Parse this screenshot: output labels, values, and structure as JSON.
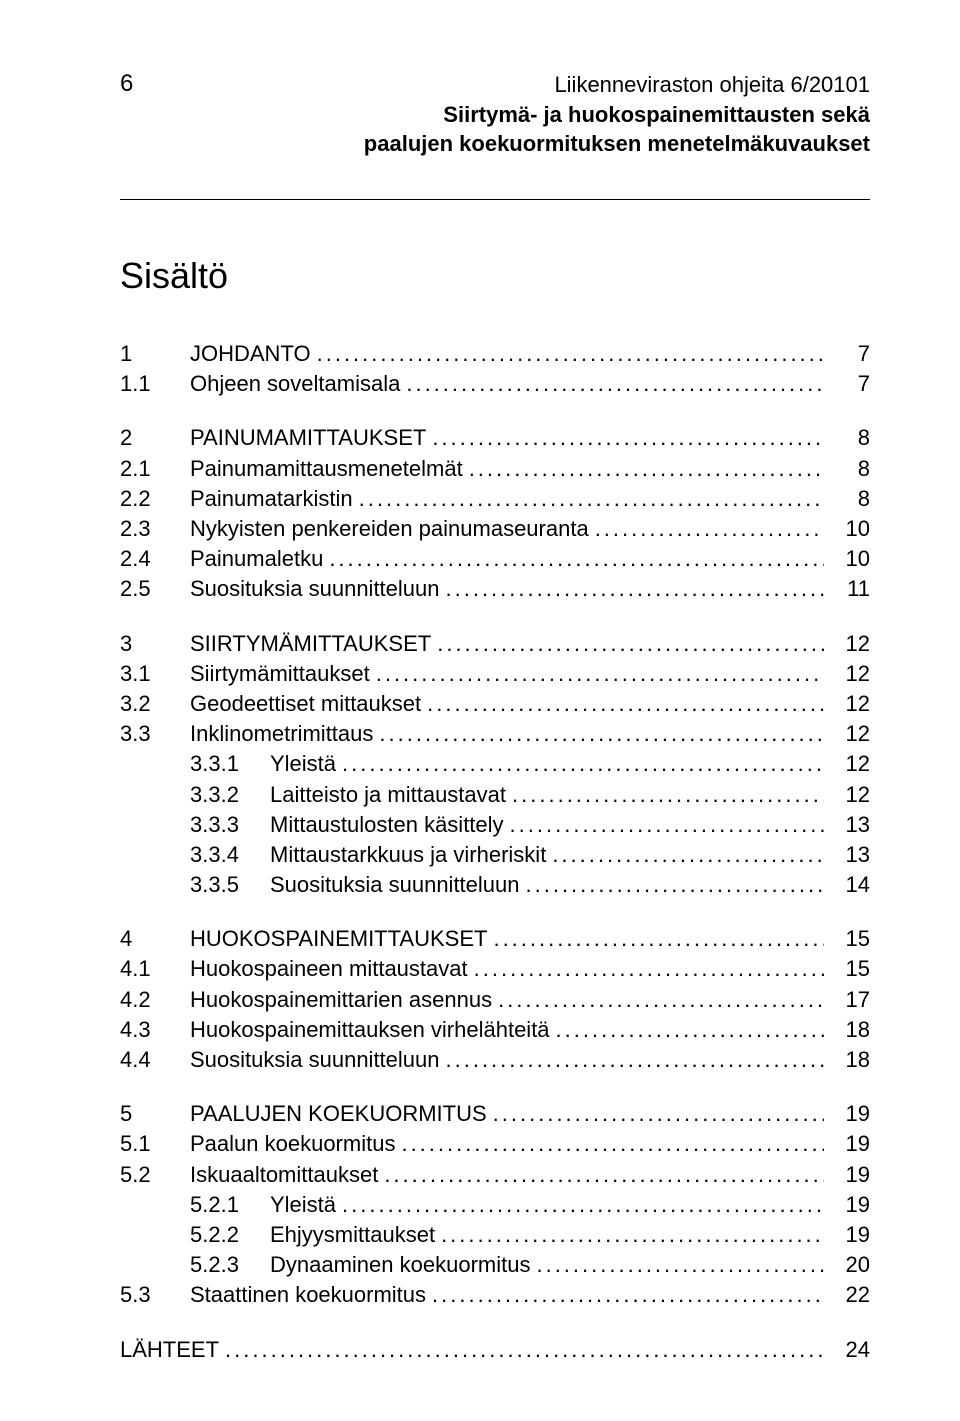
{
  "header": {
    "page_number": "6",
    "line1": "Liikenneviraston ohjeita 6/20101",
    "line2": "Siirtymä- ja huokospainemittausten sekä",
    "line3": "paalujen koekuormituksen menetelmäkuvaukset"
  },
  "content_title": "Sisältö",
  "toc": [
    {
      "type": "l1",
      "num": "1",
      "label": "JOHDANTO",
      "page": "7"
    },
    {
      "type": "l2",
      "num": "1.1",
      "label": "Ohjeen soveltamisala",
      "page": "7"
    },
    {
      "type": "spacer"
    },
    {
      "type": "l1",
      "num": "2",
      "label": "PAINUMAMITTAUKSET",
      "page": "8"
    },
    {
      "type": "l2",
      "num": "2.1",
      "label": "Painumamittausmenetelmät",
      "page": "8"
    },
    {
      "type": "l2",
      "num": "2.2",
      "label": "Painumatarkistin",
      "page": "8"
    },
    {
      "type": "l2",
      "num": "2.3",
      "label": "Nykyisten penkereiden painumaseuranta",
      "page": "10"
    },
    {
      "type": "l2",
      "num": "2.4",
      "label": "Painumaletku",
      "page": "10"
    },
    {
      "type": "l2",
      "num": "2.5",
      "label": "Suosituksia suunnitteluun",
      "page": "11"
    },
    {
      "type": "spacer"
    },
    {
      "type": "l1",
      "num": "3",
      "label": "SIIRTYMÄMITTAUKSET",
      "page": "12"
    },
    {
      "type": "l2",
      "num": "3.1",
      "label": "Siirtymämittaukset",
      "page": "12"
    },
    {
      "type": "l2",
      "num": "3.2",
      "label": "Geodeettiset mittaukset",
      "page": "12"
    },
    {
      "type": "l2",
      "num": "3.3",
      "label": "Inklinometrimittaus",
      "page": "12"
    },
    {
      "type": "l3",
      "num": "3.3.1",
      "label": "Yleistä",
      "page": "12"
    },
    {
      "type": "l3",
      "num": "3.3.2",
      "label": "Laitteisto ja mittaustavat",
      "page": "12"
    },
    {
      "type": "l3",
      "num": "3.3.3",
      "label": "Mittaustulosten käsittely",
      "page": "13"
    },
    {
      "type": "l3",
      "num": "3.3.4",
      "label": "Mittaustarkkuus ja virheriskit",
      "page": "13"
    },
    {
      "type": "l3",
      "num": "3.3.5",
      "label": "Suosituksia suunnitteluun",
      "page": "14"
    },
    {
      "type": "spacer"
    },
    {
      "type": "l1",
      "num": "4",
      "label": "HUOKOSPAINEMITTAUKSET",
      "page": "15"
    },
    {
      "type": "l2",
      "num": "4.1",
      "label": "Huokospaineen mittaustavat",
      "page": "15"
    },
    {
      "type": "l2",
      "num": "4.2",
      "label": "Huokospainemittarien asennus",
      "page": "17"
    },
    {
      "type": "l2",
      "num": "4.3",
      "label": "Huokospainemittauksen virhelähteitä",
      "page": "18"
    },
    {
      "type": "l2",
      "num": "4.4",
      "label": "Suosituksia suunnitteluun",
      "page": "18"
    },
    {
      "type": "spacer"
    },
    {
      "type": "l1",
      "num": "5",
      "label": "PAALUJEN KOEKUORMITUS",
      "page": "19"
    },
    {
      "type": "l2",
      "num": "5.1",
      "label": "Paalun koekuormitus",
      "page": "19"
    },
    {
      "type": "l2",
      "num": "5.2",
      "label": "Iskuaaltomittaukset",
      "page": "19"
    },
    {
      "type": "l3",
      "num": "5.2.1",
      "label": "Yleistä",
      "page": "19"
    },
    {
      "type": "l3",
      "num": "5.2.2",
      "label": "Ehjyysmittaukset",
      "page": "19"
    },
    {
      "type": "l3",
      "num": "5.2.3",
      "label": "Dynaaminen koekuormitus",
      "page": "20"
    },
    {
      "type": "l2",
      "num": "5.3",
      "label": "Staattinen koekuormitus",
      "page": "22"
    },
    {
      "type": "spacer"
    },
    {
      "type": "l1-noNum",
      "label": "LÄHTEET",
      "page": "24"
    }
  ]
}
